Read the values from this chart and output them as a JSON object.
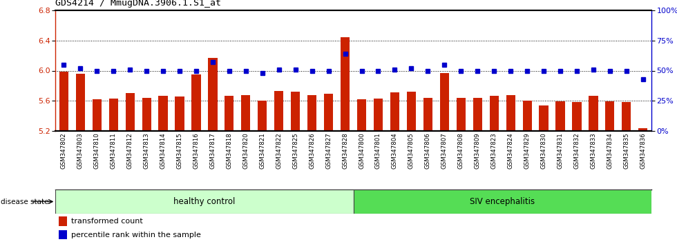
{
  "title": "GDS4214 / MmugDNA.3906.1.S1_at",
  "samples": [
    "GSM347802",
    "GSM347803",
    "GSM347810",
    "GSM347811",
    "GSM347812",
    "GSM347813",
    "GSM347814",
    "GSM347815",
    "GSM347816",
    "GSM347817",
    "GSM347818",
    "GSM347820",
    "GSM347821",
    "GSM347822",
    "GSM347825",
    "GSM347826",
    "GSM347827",
    "GSM347828",
    "GSM347800",
    "GSM347801",
    "GSM347804",
    "GSM347805",
    "GSM347806",
    "GSM347807",
    "GSM347808",
    "GSM347809",
    "GSM347823",
    "GSM347824",
    "GSM347829",
    "GSM347830",
    "GSM347831",
    "GSM347832",
    "GSM347833",
    "GSM347834",
    "GSM347835",
    "GSM347836"
  ],
  "bar_values": [
    5.99,
    5.96,
    5.62,
    5.63,
    5.7,
    5.64,
    5.67,
    5.66,
    5.95,
    6.17,
    5.67,
    5.68,
    5.6,
    5.73,
    5.72,
    5.68,
    5.69,
    6.44,
    5.62,
    5.63,
    5.71,
    5.72,
    5.64,
    5.97,
    5.64,
    5.64,
    5.67,
    5.68,
    5.6,
    5.54,
    5.59,
    5.58,
    5.67,
    5.59,
    5.58,
    5.24
  ],
  "percentile_values": [
    55,
    52,
    50,
    50,
    51,
    50,
    50,
    50,
    50,
    57,
    50,
    50,
    48,
    51,
    51,
    50,
    50,
    64,
    50,
    50,
    51,
    52,
    50,
    55,
    50,
    50,
    50,
    50,
    50,
    50,
    50,
    50,
    51,
    50,
    50,
    43
  ],
  "ylim_left": [
    5.2,
    6.8
  ],
  "ylim_right": [
    0,
    100
  ],
  "yticks_left": [
    5.2,
    5.6,
    6.0,
    6.4,
    6.8
  ],
  "yticks_right": [
    0,
    25,
    50,
    75,
    100
  ],
  "ytick_labels_right": [
    "0%",
    "25%",
    "50%",
    "75%",
    "100%"
  ],
  "bar_color": "#cc2200",
  "dot_color": "#0000cc",
  "healthy_count": 18,
  "healthy_label": "healthy control",
  "siv_label": "SIV encephalitis",
  "healthy_bg": "#ccffcc",
  "siv_bg": "#55dd55",
  "xtick_bg": "#cccccc",
  "disease_state_label": "disease state",
  "legend_bar_label": "transformed count",
  "legend_dot_label": "percentile rank within the sample",
  "bar_width": 0.55,
  "figsize": [
    9.8,
    3.54
  ],
  "dpi": 100
}
